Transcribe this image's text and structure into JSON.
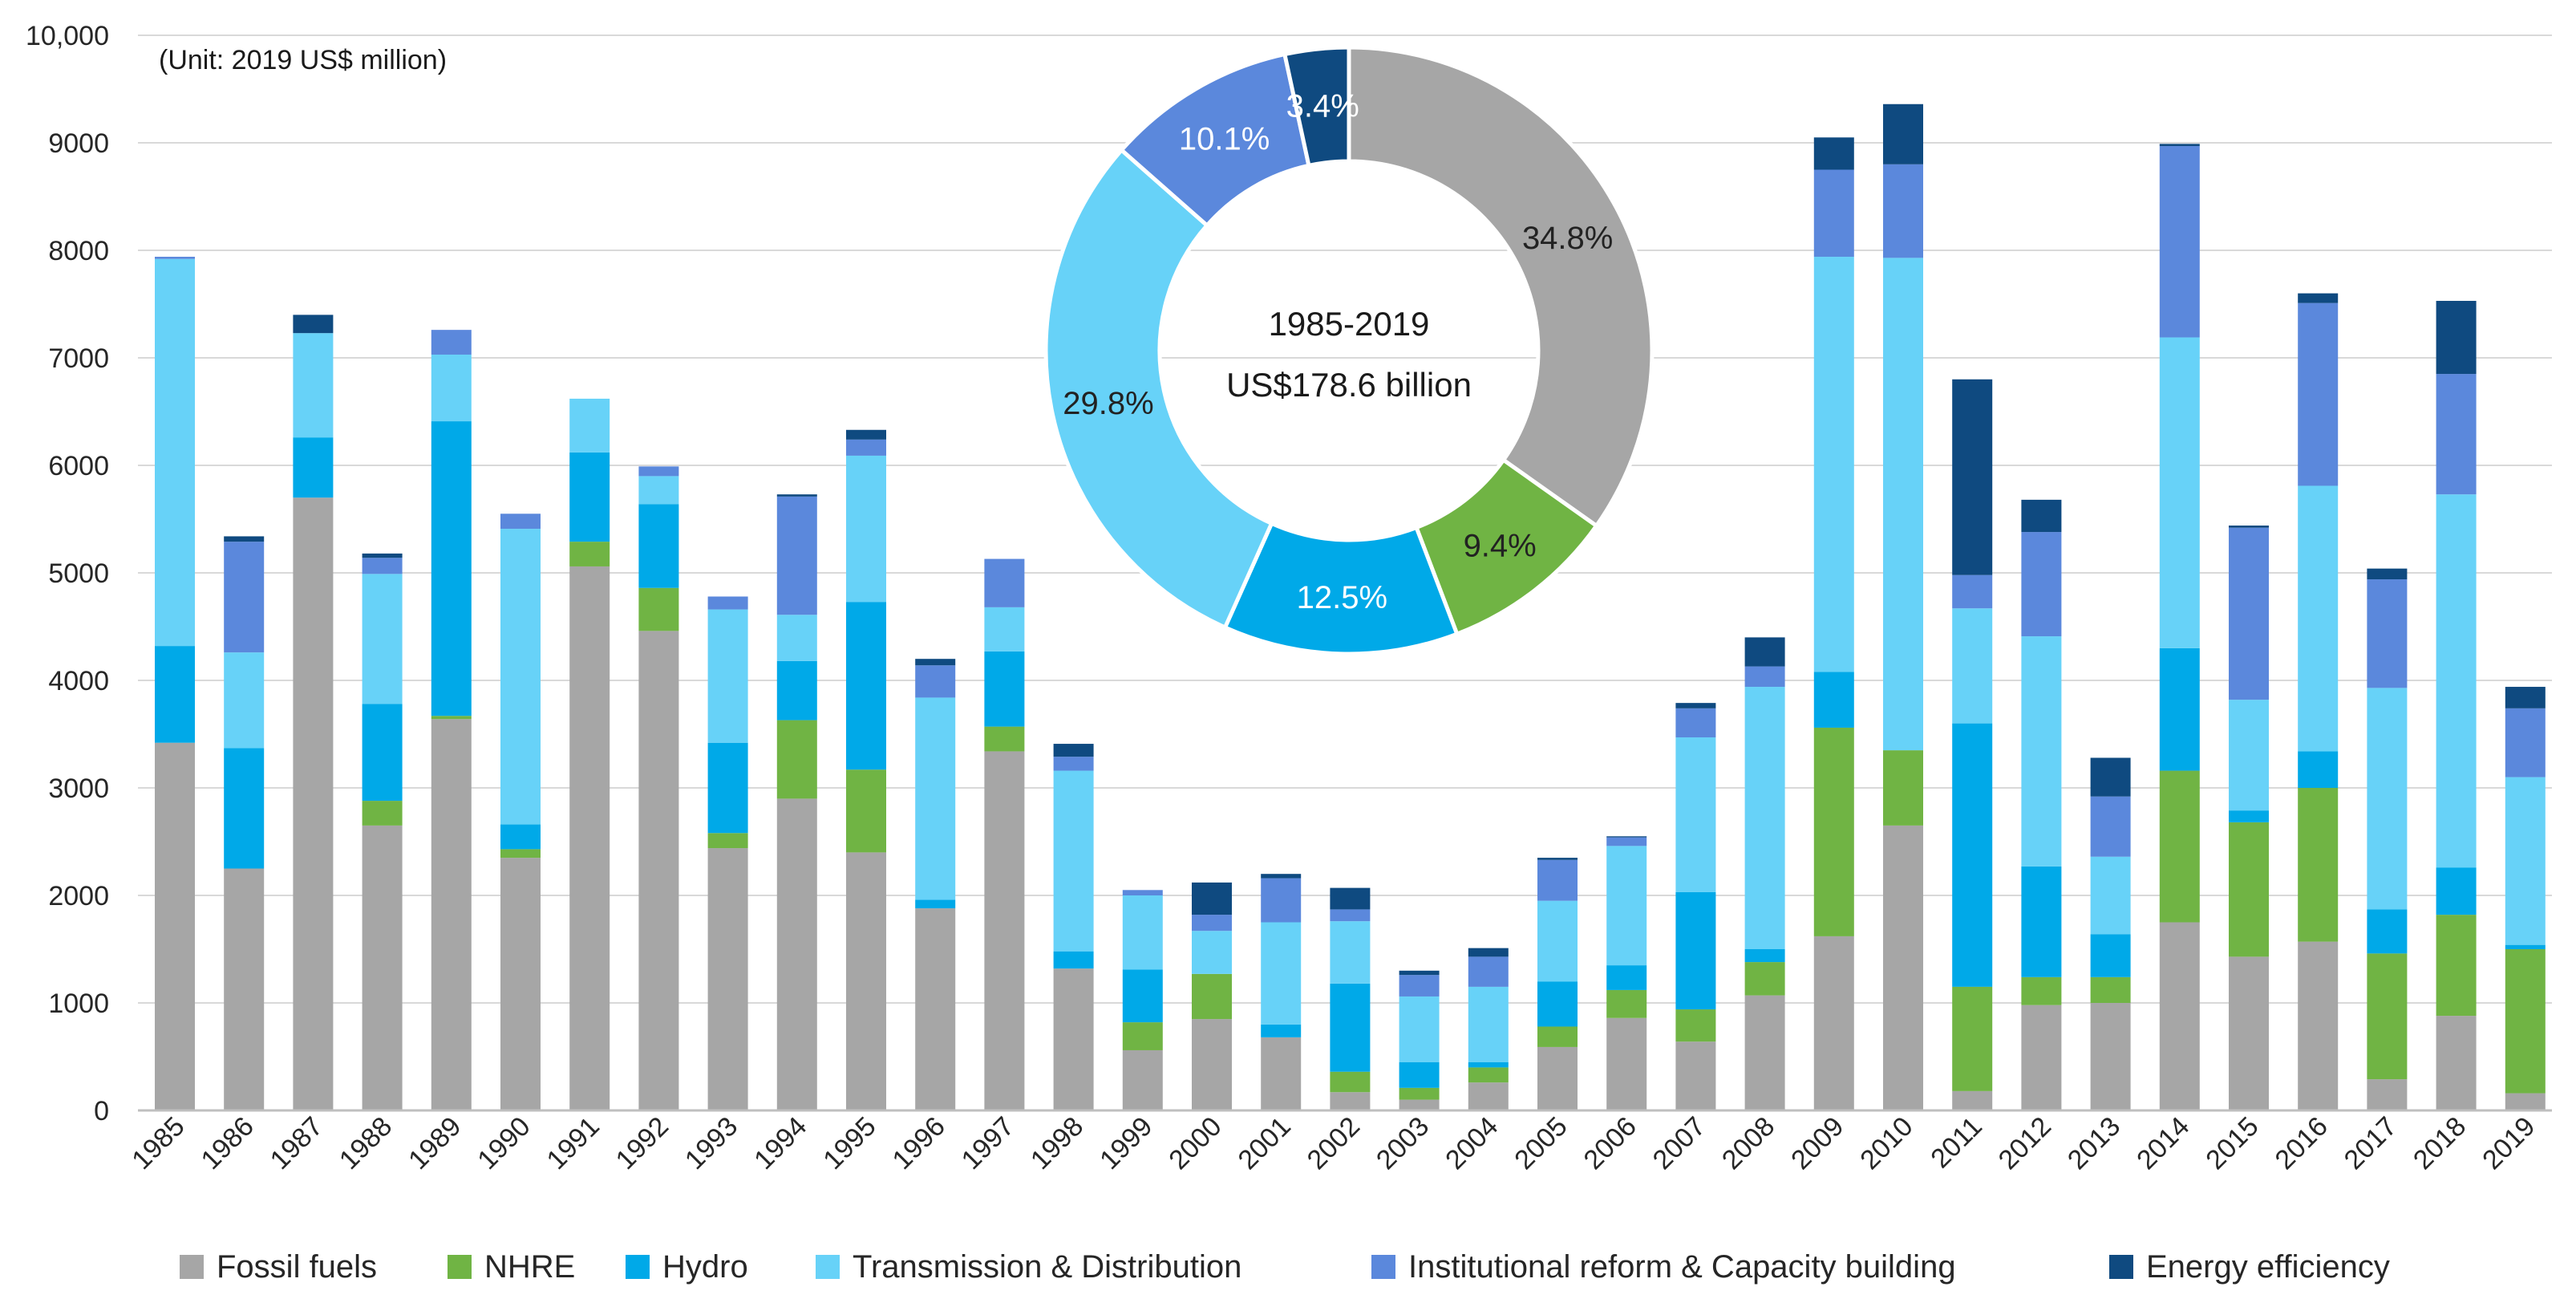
{
  "chart_data": {
    "type": "bar",
    "stacked": true,
    "title": "",
    "unit_note": "(Unit: 2019 US$ million)",
    "xlabel": "",
    "ylabel": "",
    "ylim": [
      0,
      10000
    ],
    "y_ticks": [
      0,
      1000,
      2000,
      3000,
      4000,
      5000,
      6000,
      7000,
      8000,
      9000,
      10000
    ],
    "y_tick_labels": [
      "0",
      "1000",
      "2000",
      "3000",
      "4000",
      "5000",
      "6000",
      "7000",
      "8000",
      "9000",
      "10,000"
    ],
    "grid": true,
    "legend_position": "bottom",
    "categories": [
      "1985",
      "1986",
      "1987",
      "1988",
      "1989",
      "1990",
      "1991",
      "1992",
      "1993",
      "1994",
      "1995",
      "1996",
      "1997",
      "1998",
      "1999",
      "2000",
      "2001",
      "2002",
      "2003",
      "2004",
      "2005",
      "2006",
      "2007",
      "2008",
      "2009",
      "2010",
      "2011",
      "2012",
      "2013",
      "2014",
      "2015",
      "2016",
      "2017",
      "2018",
      "2019"
    ],
    "series": [
      {
        "name": "Fossil fuels",
        "color": "#a6a6a6",
        "values": [
          3420,
          2250,
          5700,
          2650,
          3640,
          2350,
          5060,
          4460,
          2440,
          2900,
          2400,
          1880,
          3340,
          1320,
          560,
          850,
          680,
          170,
          100,
          260,
          590,
          860,
          640,
          1070,
          1620,
          2650,
          180,
          980,
          1000,
          1750,
          1430,
          1570,
          290,
          880,
          160
        ]
      },
      {
        "name": "NHRE",
        "color": "#70b444",
        "values": [
          0,
          0,
          0,
          230,
          30,
          80,
          230,
          400,
          140,
          730,
          770,
          0,
          230,
          0,
          260,
          420,
          0,
          190,
          110,
          140,
          190,
          260,
          300,
          310,
          1940,
          700,
          970,
          260,
          240,
          1410,
          1250,
          1430,
          1170,
          940,
          1340
        ]
      },
      {
        "name": "Hydro",
        "color": "#00a9e8",
        "values": [
          900,
          1120,
          560,
          900,
          2740,
          230,
          830,
          780,
          840,
          550,
          1560,
          80,
          700,
          160,
          490,
          0,
          120,
          820,
          240,
          50,
          420,
          230,
          1090,
          120,
          520,
          0,
          2450,
          1030,
          400,
          1140,
          110,
          340,
          410,
          440,
          40
        ]
      },
      {
        "name": "Transmission & Distribution",
        "color": "#67d2f8",
        "values": [
          3600,
          890,
          970,
          1210,
          620,
          2750,
          500,
          260,
          1240,
          430,
          1360,
          1880,
          410,
          1680,
          690,
          400,
          950,
          580,
          610,
          700,
          750,
          1110,
          1440,
          2440,
          3860,
          4580,
          1070,
          2140,
          720,
          2890,
          1030,
          2470,
          2060,
          3470,
          1560
        ]
      },
      {
        "name": "Institutional reform & Capacity building",
        "color": "#5b88dc",
        "values": [
          20,
          1030,
          0,
          150,
          230,
          140,
          0,
          90,
          120,
          1100,
          150,
          300,
          450,
          130,
          50,
          150,
          410,
          110,
          200,
          280,
          380,
          80,
          270,
          190,
          810,
          870,
          310,
          970,
          560,
          1780,
          1600,
          1700,
          1010,
          1120,
          640
        ]
      },
      {
        "name": "Energy efficiency",
        "color": "#0f4a80",
        "values": [
          0,
          50,
          170,
          40,
          0,
          0,
          0,
          0,
          0,
          20,
          90,
          60,
          0,
          120,
          0,
          300,
          40,
          200,
          40,
          80,
          20,
          10,
          50,
          270,
          300,
          560,
          1820,
          300,
          360,
          20,
          20,
          90,
          100,
          680,
          200
        ]
      }
    ],
    "donut": {
      "title_line1": "1985-2019",
      "title_line2": "US$178.6 billion",
      "slices": [
        {
          "name": "Fossil fuels",
          "value": 34.8,
          "label": "34.8%",
          "color": "#a6a6a6",
          "label_color": "#222222"
        },
        {
          "name": "NHRE",
          "value": 9.4,
          "label": "9.4%",
          "color": "#70b444",
          "label_color": "#222222"
        },
        {
          "name": "Hydro",
          "value": 12.5,
          "label": "12.5%",
          "color": "#00a9e8",
          "label_color": "#ffffff"
        },
        {
          "name": "Transmission & Distribution",
          "value": 29.8,
          "label": "29.8%",
          "color": "#67d2f8",
          "label_color": "#222222"
        },
        {
          "name": "Institutional reform & Capacity building",
          "value": 10.1,
          "label": "10.1%",
          "color": "#5b88dc",
          "label_color": "#ffffff"
        },
        {
          "name": "Energy efficiency",
          "value": 3.4,
          "label": "3.4%",
          "color": "#0f4a80",
          "label_color": "#ffffff"
        }
      ]
    }
  }
}
